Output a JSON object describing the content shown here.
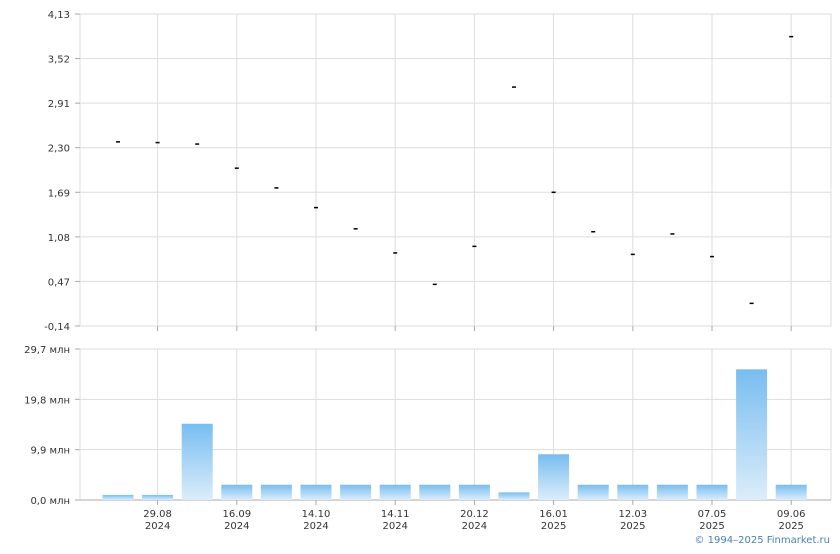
{
  "chart_data": [
    {
      "type": "scatter",
      "yticks": [
        "4,13",
        "3,52",
        "2,91",
        "2,30",
        "1,69",
        "1,08",
        "0,47",
        "-0,14"
      ],
      "ylim": [
        -0.14,
        4.13
      ],
      "grid": true,
      "points": [
        2.38,
        2.37,
        2.35,
        2.02,
        1.75,
        1.48,
        1.19,
        0.86,
        0.43,
        0.95,
        3.13,
        1.69,
        1.15,
        0.84,
        1.12,
        0.81,
        0.17,
        3.82
      ]
    },
    {
      "type": "bar",
      "yticks": [
        "29,7 млн",
        "19,8 млн",
        "9,9 млн",
        "0,0 млн"
      ],
      "ylim": [
        0,
        29.7
      ],
      "unit": "млн",
      "grid": true,
      "values": [
        1.0,
        1.0,
        15.0,
        3.0,
        3.0,
        3.0,
        3.0,
        3.0,
        3.0,
        3.0,
        1.5,
        9.0,
        3.0,
        3.0,
        3.0,
        3.0,
        25.7,
        3.0
      ],
      "x_labels": [
        {
          "date": "29.08",
          "year": "2024"
        },
        {
          "date": "16.09",
          "year": "2024"
        },
        {
          "date": "14.10",
          "year": "2024"
        },
        {
          "date": "14.11",
          "year": "2024"
        },
        {
          "date": "20.12",
          "year": "2024"
        },
        {
          "date": "16.01",
          "year": "2025"
        },
        {
          "date": "12.03",
          "year": "2025"
        },
        {
          "date": "07.05",
          "year": "2025"
        },
        {
          "date": "09.06",
          "year": "2025"
        }
      ],
      "colors": {
        "bar_top": "#78bdf0",
        "bar_bottom": "#dcedfa",
        "grid": "#dddddd",
        "axis": "#aaaaaa"
      }
    }
  ],
  "copyright": "© 1994–2025 Finmarket.ru"
}
